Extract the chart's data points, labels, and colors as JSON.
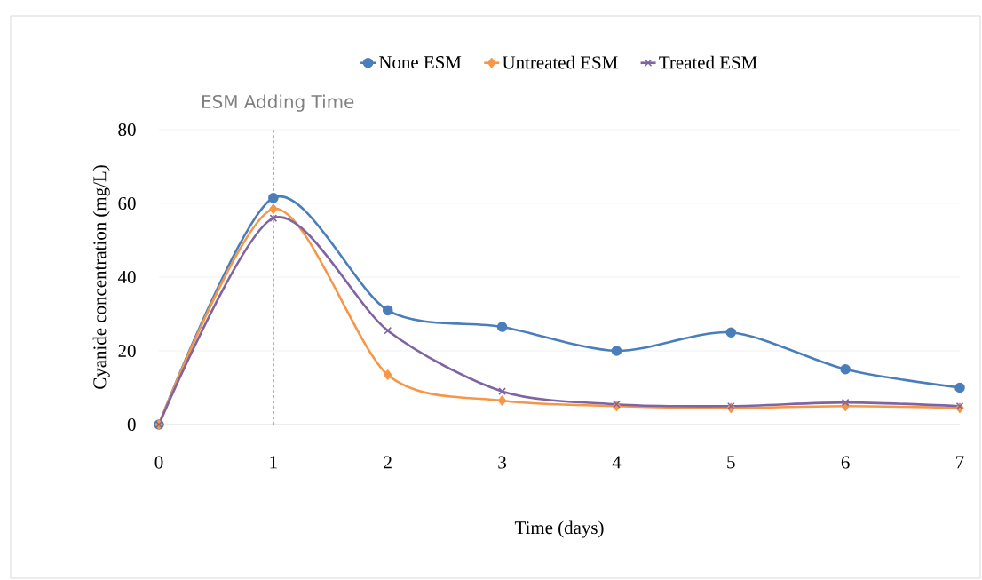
{
  "chart_data": {
    "type": "line",
    "xlabel": "Time (days)",
    "ylabel": "Cyanide concentration (mg/L)",
    "x": [
      0,
      1,
      2,
      3,
      4,
      5,
      6,
      7
    ],
    "series": [
      {
        "name": "None ESM",
        "color": "#4a7ebb",
        "marker": "circle",
        "values": [
          0,
          61.5,
          31,
          26.5,
          20,
          25,
          15,
          10
        ]
      },
      {
        "name": "Untreated ESM",
        "color": "#f79646",
        "marker": "diamond",
        "values": [
          0,
          58.5,
          13.5,
          6.5,
          5,
          4.5,
          5,
          4.5
        ]
      },
      {
        "name": "Treated ESM",
        "color": "#8064a2",
        "marker": "cross",
        "values": [
          0,
          56,
          25.5,
          9,
          5.5,
          5,
          6,
          5
        ]
      }
    ],
    "xlim": [
      0,
      7
    ],
    "xticks": [
      0,
      1,
      2,
      3,
      4,
      5,
      6,
      7
    ],
    "ylim": [
      0,
      80
    ],
    "yticks": [
      0,
      20,
      40,
      60,
      80
    ],
    "grid": "y",
    "legend": "top",
    "line_style": "solid",
    "ref_lines": [
      {
        "axis": "x",
        "value": 1,
        "label": "ESM Adding Time",
        "color": "#7f7f7f",
        "line_style": "dashed"
      }
    ]
  }
}
